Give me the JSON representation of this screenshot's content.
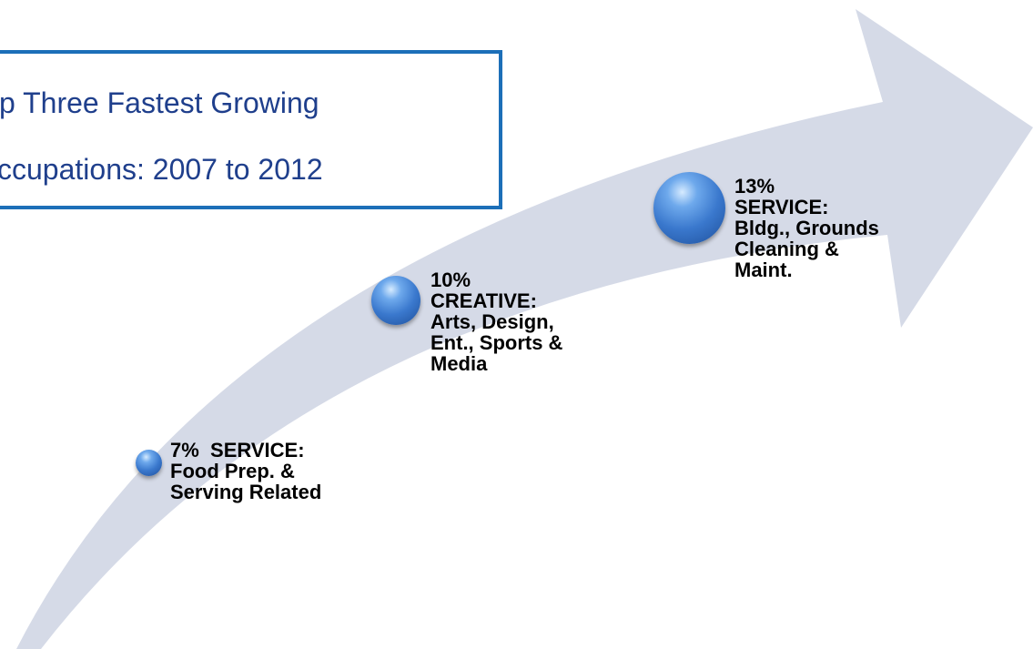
{
  "callout": {
    "line1": "p Three Fastest Growing",
    "line2": "ccupations: 2007 to 2012"
  },
  "stages": [
    {
      "label": "7%  SERVICE:\nFood Prep. &\nServing Related"
    },
    {
      "label": "10%\nCREATIVE:\nArts, Design,\nEnt., Sports &\nMedia"
    },
    {
      "label": "13%\nSERVICE:\nBldg., Grounds\nCleaning &\nMaint."
    }
  ],
  "colors": {
    "arrow": "#d5dae7",
    "box_border": "#1c6fb8",
    "title_text": "#1f3f8c",
    "dot": "#3a78cd"
  }
}
